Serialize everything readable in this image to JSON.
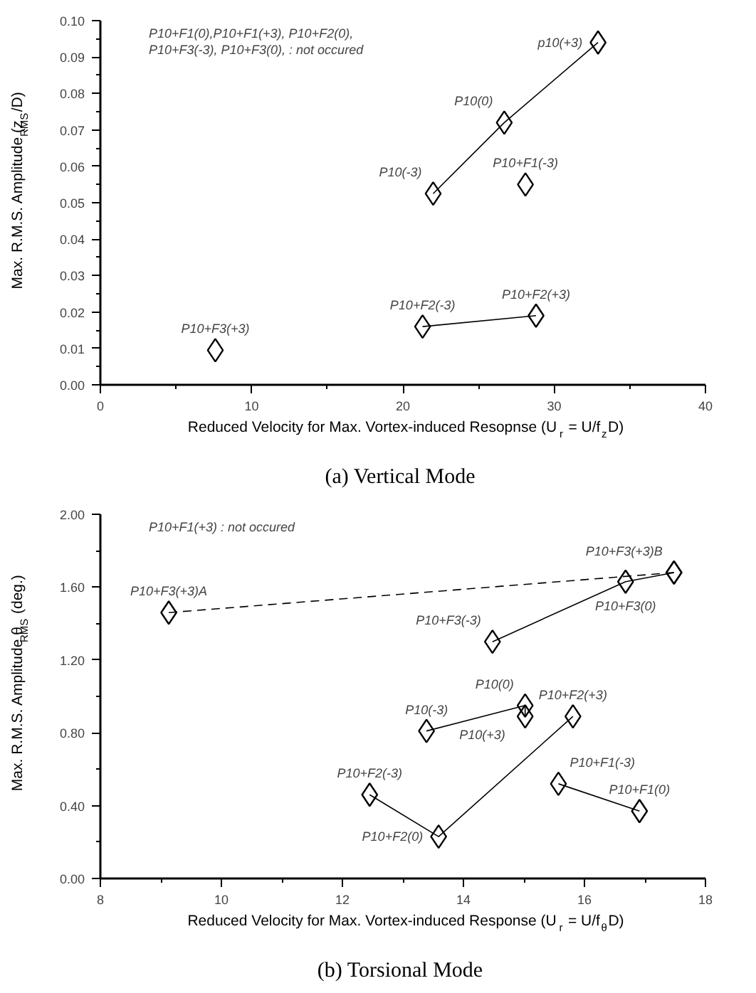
{
  "chart_data": [
    {
      "type": "line",
      "title": "(a)  Vertical Mode",
      "xlabel": "Reduced Velocity for Max. Vortex-induced Resopnse (U$_{r}$ = U/f$_{z}$D)",
      "ylabel": "Max. R.M.S. Amplitude (z$_{RMS}$/D)",
      "xlim": [
        0,
        40
      ],
      "xticks": [
        0,
        10,
        20,
        30,
        40
      ],
      "ylim": [
        0,
        0.1
      ],
      "yticks": [
        {
          "value": 0,
          "label": "0.00"
        },
        {
          "value": 0.01,
          "label": "0.01"
        },
        {
          "value": 0.02,
          "label": "0.02"
        },
        {
          "value": 0.03,
          "label": "0.03"
        },
        {
          "value": 0.04,
          "label": "0.04"
        },
        {
          "value": 0.05,
          "label": "0.05"
        },
        {
          "value": 0.06,
          "label": "0.06"
        },
        {
          "value": 0.07,
          "label": "0.07"
        },
        {
          "value": 0.08,
          "label": "0.08"
        },
        {
          "value": 0.09,
          "label": "0.09"
        },
        {
          "value": 0.1,
          "label": "0.10"
        }
      ],
      "marker": "diamond",
      "series": [
        {
          "color": "#000000",
          "line_style": "solid",
          "x": [
            22.0,
            26.7,
            32.9
          ],
          "values": [
            0.0525,
            0.072,
            0.094
          ]
        },
        {
          "color": "#000000",
          "line_style": "solid",
          "x": [
            21.3,
            28.8
          ],
          "values": [
            0.016,
            0.019
          ]
        },
        {
          "type": "scatter",
          "color": "#000000",
          "x": [
            28.1
          ],
          "values": [
            0.055
          ]
        },
        {
          "type": "scatter",
          "color": "#000000",
          "x": [
            7.6
          ],
          "values": [
            0.0095
          ]
        }
      ],
      "annotations": [
        "P10+F1(0),P10+F1(+3), P10+F2(0),",
        "P10+F3(-3), P10+F3(0),  : not occured",
        {
          "text": "P10(-3)",
          "x": 22.0,
          "y": 0.0525
        },
        {
          "text": "P10(0)",
          "x": 26.7,
          "y": 0.072
        },
        {
          "text": "p10(+3)",
          "x": 32.9,
          "y": 0.094
        },
        {
          "text": "P10+F1(-3)",
          "x": 28.1,
          "y": 0.055
        },
        {
          "text": "P10+F2(-3)",
          "x": 21.3,
          "y": 0.016
        },
        {
          "text": "P10+F2(+3)",
          "x": 28.8,
          "y": 0.019
        },
        {
          "text": "P10+F3(+3)",
          "x": 7.6,
          "y": 0.0095
        }
      ]
    },
    {
      "type": "line",
      "title": "(b)  Torsional Mode",
      "xlabel": "Reduced Velocity for Max. Vortex-induced Response (U$_{r}$ = U/f$_{θ}$D)",
      "ylabel": "Max. R.M.S. Amplitude θ$_{RMS}$ (deg.)",
      "xlim": [
        8,
        18
      ],
      "xticks": [
        8,
        10,
        12,
        14,
        16,
        18
      ],
      "ylim": [
        0,
        2
      ],
      "yticks": [
        {
          "value": 0,
          "label": "0.00"
        },
        {
          "value": 0.4,
          "label": "0.40"
        },
        {
          "value": 0.8,
          "label": "0.80"
        },
        {
          "value": 1.2,
          "label": "1.20"
        },
        {
          "value": 1.6,
          "label": "1.60"
        },
        {
          "value": 2,
          "label": "2.00"
        }
      ],
      "marker": "diamond",
      "series": [
        {
          "color": "#000000",
          "line_style": "dashed",
          "x": [
            9.13,
            17.48
          ],
          "values": [
            1.46,
            1.68
          ]
        },
        {
          "color": "#000000",
          "line_style": "solid",
          "x": [
            14.48,
            16.68,
            17.48
          ],
          "values": [
            1.3,
            1.63,
            1.68
          ]
        },
        {
          "color": "#000000",
          "line_style": "solid",
          "x": [
            13.39,
            15.02,
            15.02
          ],
          "values": [
            0.81,
            0.95,
            0.89
          ]
        },
        {
          "color": "#000000",
          "line_style": "solid",
          "x": [
            12.45,
            13.59,
            15.81
          ],
          "values": [
            0.46,
            0.23,
            0.89
          ]
        },
        {
          "color": "#000000",
          "line_style": "solid",
          "x": [
            15.57,
            16.91
          ],
          "values": [
            0.52,
            0.37
          ]
        }
      ],
      "annotations": [
        "P10+F1(+3) : not occured",
        {
          "text": "P10+F3(+3)A",
          "x": 9.13,
          "y": 1.46
        },
        {
          "text": "P10+F3(-3)",
          "x": 14.48,
          "y": 1.3
        },
        {
          "text": "P10+F3(0)",
          "x": 16.68,
          "y": 1.63
        },
        {
          "text": "P10+F3(+3)B",
          "x": 17.48,
          "y": 1.68
        },
        {
          "text": "P10(-3)",
          "x": 13.39,
          "y": 0.81
        },
        {
          "text": "P10(0)",
          "x": 15.02,
          "y": 0.95
        },
        {
          "text": "P10(+3)",
          "x": 15.02,
          "y": 0.89
        },
        {
          "text": "P10+F2(-3)",
          "x": 12.45,
          "y": 0.46
        },
        {
          "text": "P10+F2(0)",
          "x": 13.59,
          "y": 0.23
        },
        {
          "text": "P10+F2(+3)",
          "x": 15.81,
          "y": 0.89
        },
        {
          "text": "P10+F1(-3)",
          "x": 15.57,
          "y": 0.52
        },
        {
          "text": "P10+F1(0)",
          "x": 16.91,
          "y": 0.37
        }
      ]
    }
  ]
}
